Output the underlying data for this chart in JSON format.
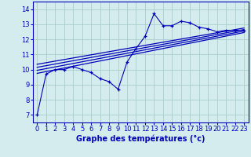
{
  "xlabel": "Graphe des températures (°c)",
  "background_color": "#d4ecee",
  "grid_color": "#aacccc",
  "line_color": "#0000bb",
  "xlim": [
    -0.5,
    23.5
  ],
  "ylim": [
    6.5,
    14.5
  ],
  "xticks": [
    0,
    1,
    2,
    3,
    4,
    5,
    6,
    7,
    8,
    9,
    10,
    11,
    12,
    13,
    14,
    15,
    16,
    17,
    18,
    19,
    20,
    21,
    22,
    23
  ],
  "yticks": [
    7,
    8,
    9,
    10,
    11,
    12,
    13,
    14
  ],
  "main_x": [
    0,
    1,
    2,
    3,
    4,
    5,
    6,
    7,
    8,
    9,
    10,
    11,
    12,
    13,
    14,
    15,
    16,
    17,
    18,
    19,
    20,
    21,
    22,
    23
  ],
  "main_y": [
    7.0,
    9.7,
    10.0,
    10.0,
    10.2,
    10.0,
    9.8,
    9.4,
    9.2,
    8.7,
    10.5,
    11.4,
    12.2,
    13.7,
    12.9,
    12.9,
    13.2,
    13.1,
    12.8,
    12.7,
    12.5,
    12.6,
    12.6,
    12.6
  ],
  "reg_lines": [
    {
      "x0": 0,
      "y0": 9.75,
      "x1": 23,
      "y1": 12.45
    },
    {
      "x0": 0,
      "y0": 9.95,
      "x1": 23,
      "y1": 12.55
    },
    {
      "x0": 0,
      "y0": 10.15,
      "x1": 23,
      "y1": 12.65
    },
    {
      "x0": 0,
      "y0": 10.35,
      "x1": 23,
      "y1": 12.75
    }
  ],
  "xlabel_fontsize": 7,
  "tick_fontsize": 6,
  "xlabel_bold": true
}
